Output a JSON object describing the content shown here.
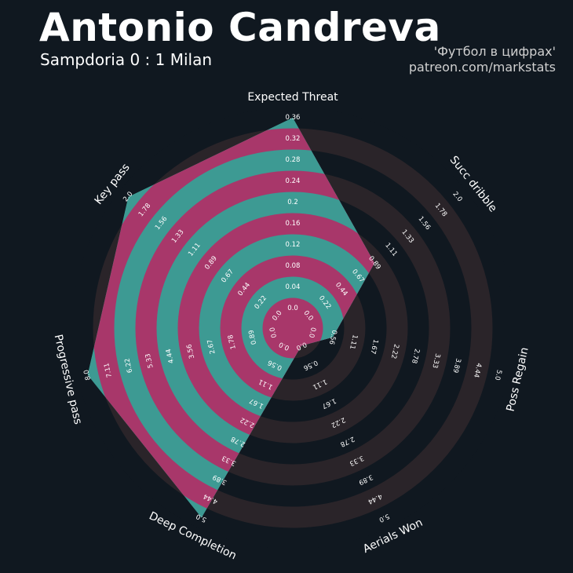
{
  "header": {
    "title": "Antonio Candreva",
    "subtitle": "Sampdoria 0 : 1 Milan",
    "credit_line1": "'Футбол в цифрах'",
    "credit_line2": "patreon.com/markstats"
  },
  "colors": {
    "background": "#101820",
    "ring_dark": "#2a2429",
    "ring_light": "#101820",
    "player_fill": "#3d9a93",
    "ring_highlight": "#a8376a"
  },
  "chart_data": {
    "type": "radar",
    "title": "Antonio Candreva",
    "subtitle": "Sampdoria 0 : 1 Milan",
    "axes": [
      {
        "label": "Expected Threat",
        "min": 0.0,
        "max": 0.36,
        "value": 0.36,
        "ticks": [
          "0.0",
          "0.04",
          "0.08",
          "0.12",
          "0.16",
          "0.2",
          "0.24",
          "0.28",
          "0.32",
          "0.36"
        ]
      },
      {
        "label": "Succ dribble",
        "min": 0.0,
        "max": 2.0,
        "value": 0.89,
        "ticks": [
          "0.0",
          "0.22",
          "0.44",
          "0.67",
          "0.89",
          "1.11",
          "1.33",
          "1.56",
          "1.78",
          "2.0"
        ]
      },
      {
        "label": "Poss Regain",
        "min": 0.0,
        "max": 5.0,
        "value": 0.56,
        "ticks": [
          "0.0",
          "0.56",
          "1.11",
          "1.67",
          "2.22",
          "2.78",
          "3.33",
          "3.89",
          "4.44",
          "5.0"
        ]
      },
      {
        "label": "Aerials Won",
        "min": 0.0,
        "max": 5.0,
        "value": 0.0,
        "ticks": [
          "0.0",
          "0.56",
          "1.11",
          "1.67",
          "2.22",
          "2.78",
          "3.33",
          "3.89",
          "4.44",
          "5.0"
        ]
      },
      {
        "label": "Deep Completion",
        "min": 0.0,
        "max": 5.0,
        "value": 5.0,
        "ticks": [
          "0.0",
          "0.56",
          "1.11",
          "1.67",
          "2.22",
          "2.78",
          "3.33",
          "3.89",
          "4.44",
          "5.0"
        ]
      },
      {
        "label": "Progressive pass",
        "min": 0.0,
        "max": 8.0,
        "value": 8.0,
        "ticks": [
          "0.0",
          "0.89",
          "1.78",
          "2.67",
          "3.56",
          "4.44",
          "5.33",
          "6.22",
          "7.11",
          "8.0"
        ]
      },
      {
        "label": "Key pass",
        "min": 0.0,
        "max": 2.0,
        "value": 2.0,
        "ticks": [
          "0.0",
          "0.22",
          "0.44",
          "0.67",
          "0.89",
          "1.11",
          "1.33",
          "1.56",
          "1.78",
          "2.0"
        ]
      }
    ],
    "legend": "none",
    "grid": "concentric rings"
  }
}
